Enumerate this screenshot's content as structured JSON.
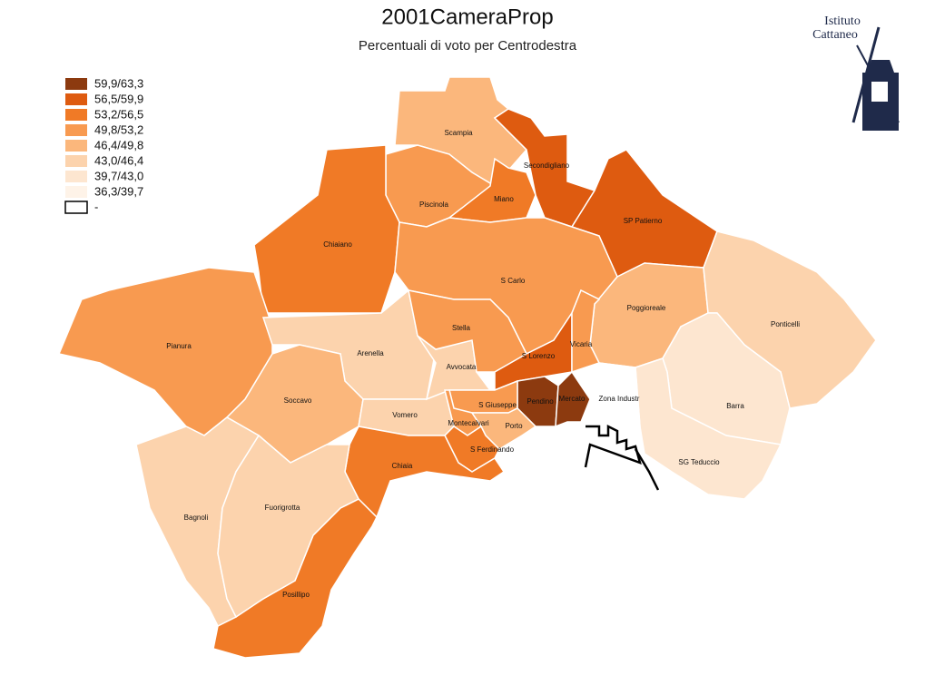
{
  "title": "2001CameraProp",
  "subtitle": "Percentuali di voto per Centrodestra",
  "logo": [
    "Istituto",
    "Cattaneo"
  ],
  "legend": [
    {
      "label": "59,9/63,3",
      "color": "#8c3a0f"
    },
    {
      "label": "56,5/59,9",
      "color": "#de5b10"
    },
    {
      "label": "53,2/56,5",
      "color": "#f07a26"
    },
    {
      "label": "49,8/53,2",
      "color": "#f89a50"
    },
    {
      "label": "46,4/49,8",
      "color": "#fbb77c"
    },
    {
      "label": "43,0/46,4",
      "color": "#fcd3ad"
    },
    {
      "label": "39,7/43,0",
      "color": "#fde6d0"
    },
    {
      "label": "36,3/39,7",
      "color": "#fef3e8"
    },
    {
      "label": "-",
      "color": "#ffffff"
    }
  ],
  "districts": [
    {
      "name": "Scampia",
      "color": "#fbb77c"
    },
    {
      "name": "Secondigliano",
      "color": "#de5b10"
    },
    {
      "name": "SP Patierno",
      "color": "#de5b10"
    },
    {
      "name": "Piscinola",
      "color": "#f89a50"
    },
    {
      "name": "Miano",
      "color": "#f07a26"
    },
    {
      "name": "Chiaiano",
      "color": "#f07a26"
    },
    {
      "name": "S Carlo",
      "color": "#f89a50"
    },
    {
      "name": "Poggioreale",
      "color": "#fbb77c"
    },
    {
      "name": "Ponticelli",
      "color": "#fcd3ad"
    },
    {
      "name": "Barra",
      "color": "#fde6d0"
    },
    {
      "name": "SG Teduccio",
      "color": "#fde6d0"
    },
    {
      "name": "Zona Industr",
      "color": "#ffffff"
    },
    {
      "name": "Pianura",
      "color": "#f89a50"
    },
    {
      "name": "Arenella",
      "color": "#fcd3ad"
    },
    {
      "name": "Soccavo",
      "color": "#fbb77c"
    },
    {
      "name": "Vomero",
      "color": "#fcd3ad"
    },
    {
      "name": "Avvocata",
      "color": "#fcd3ad"
    },
    {
      "name": "Stella",
      "color": "#f89a50"
    },
    {
      "name": "S Lorenzo",
      "color": "#de5b10"
    },
    {
      "name": "Vicaria",
      "color": "#f89a50"
    },
    {
      "name": "Pendino",
      "color": "#8c3a0f"
    },
    {
      "name": "Mercato",
      "color": "#8c3a0f"
    },
    {
      "name": "S Giuseppe",
      "color": "#f89a50"
    },
    {
      "name": "Montecalvari",
      "color": "#f89a50"
    },
    {
      "name": "Porto",
      "color": "#fbb77c"
    },
    {
      "name": "S Ferdinando",
      "color": "#f07a26"
    },
    {
      "name": "Chiaia",
      "color": "#f07a26"
    },
    {
      "name": "Posillipo",
      "color": "#f07a26"
    },
    {
      "name": "Bagnoli",
      "color": "#fcd3ad"
    },
    {
      "name": "Fuorigrotta",
      "color": "#fcd3ad"
    }
  ]
}
